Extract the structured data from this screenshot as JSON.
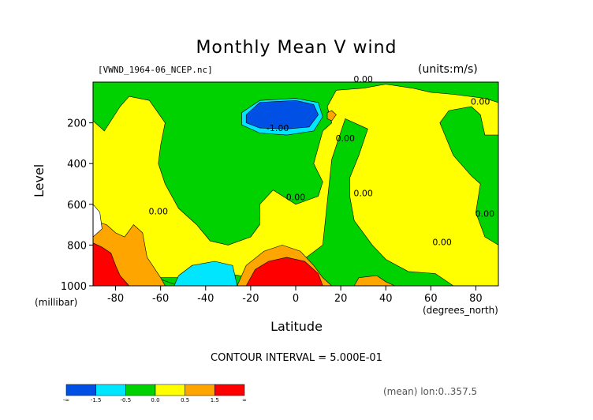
{
  "chart_data": {
    "type": "heatmap",
    "title": "Monthly Mean V wind",
    "file_label": "[VWND_1964-06_NCEP.nc]",
    "units_label": "(units:m/s)",
    "xlabel": "Latitude",
    "x_unit_label": "(degrees_north)",
    "ylabel": "Level",
    "y_unit_label": "(millibar)",
    "xlim": [
      -90,
      90
    ],
    "ylim": [
      1000,
      0
    ],
    "x_ticks": [
      "-80",
      "-60",
      "-40",
      "-20",
      "0",
      "20",
      "40",
      "60",
      "80"
    ],
    "x_tick_values": [
      -80,
      -60,
      -40,
      -20,
      0,
      20,
      40,
      60,
      80
    ],
    "y_ticks": [
      "200",
      "400",
      "600",
      "800",
      "1000"
    ],
    "y_tick_values": [
      200,
      400,
      600,
      800,
      1000
    ],
    "contour_labels": [
      {
        "text": "0.00",
        "x": 30,
        "y": 0
      },
      {
        "text": "0.00",
        "x": 82,
        "y": 110
      },
      {
        "text": "-1.00",
        "x": -8,
        "y": 240
      },
      {
        "text": "0.00",
        "x": 22,
        "y": 290
      },
      {
        "text": "0.00",
        "x": 0,
        "y": 580
      },
      {
        "text": "0.00",
        "x": 30,
        "y": 560
      },
      {
        "text": "0.00",
        "x": -61,
        "y": 650
      },
      {
        "text": "0.00",
        "x": 84,
        "y": 660
      },
      {
        "text": "0.00",
        "x": 65,
        "y": 800
      }
    ],
    "contour_interval": "CONTOUR INTERVAL = 5.000E-01",
    "colorbar": {
      "colors": [
        "#0050e6",
        "#00e6ff",
        "#00d200",
        "#ffff00",
        "#ffa500",
        "#ff0000"
      ],
      "labels": [
        "-∞",
        "-1.5",
        "-0.5",
        "0.0",
        "0.5",
        "1.5",
        "∞"
      ]
    },
    "regions": [
      {
        "level": "green",
        "color": "#00d200",
        "points": [
          [
            -90,
            0
          ],
          [
            90,
            0
          ],
          [
            90,
            1000
          ],
          [
            -90,
            1000
          ]
        ]
      },
      {
        "level": "yellow",
        "color": "#ffff00",
        "points": [
          [
            -90,
            190
          ],
          [
            -85,
            240
          ],
          [
            -78,
            120
          ],
          [
            -74,
            70
          ],
          [
            -65,
            90
          ],
          [
            -58,
            200
          ],
          [
            -60,
            310
          ],
          [
            -61,
            400
          ],
          [
            -58,
            500
          ],
          [
            -52,
            620
          ],
          [
            -44,
            700
          ],
          [
            -38,
            780
          ],
          [
            -30,
            800
          ],
          [
            -20,
            760
          ],
          [
            -16,
            700
          ],
          [
            -16,
            600
          ],
          [
            -10,
            530
          ],
          [
            0,
            600
          ],
          [
            10,
            560
          ],
          [
            12,
            490
          ],
          [
            8,
            400
          ],
          [
            12,
            240
          ],
          [
            16,
            200
          ],
          [
            14,
            120
          ],
          [
            18,
            40
          ],
          [
            30,
            30
          ],
          [
            40,
            10
          ],
          [
            52,
            30
          ],
          [
            60,
            50
          ],
          [
            70,
            60
          ],
          [
            84,
            80
          ],
          [
            90,
            100
          ],
          [
            90,
            260
          ],
          [
            84,
            260
          ],
          [
            82,
            160
          ],
          [
            78,
            120
          ],
          [
            68,
            140
          ],
          [
            64,
            200
          ],
          [
            70,
            360
          ],
          [
            78,
            460
          ],
          [
            82,
            500
          ],
          [
            80,
            640
          ],
          [
            84,
            760
          ],
          [
            90,
            800
          ],
          [
            90,
            1000
          ],
          [
            70,
            1000
          ],
          [
            62,
            940
          ],
          [
            50,
            930
          ],
          [
            40,
            870
          ],
          [
            34,
            800
          ],
          [
            26,
            680
          ],
          [
            24,
            560
          ],
          [
            24,
            470
          ],
          [
            28,
            360
          ],
          [
            32,
            230
          ],
          [
            22,
            180
          ],
          [
            16,
            380
          ],
          [
            12,
            800
          ],
          [
            0,
            900
          ],
          [
            -20,
            960
          ],
          [
            -30,
            940
          ],
          [
            -40,
            960
          ],
          [
            -62,
            960
          ],
          [
            -80,
            950
          ],
          [
            -90,
            1000
          ]
        ]
      },
      {
        "level": "green-pocket",
        "color": "#00d200",
        "points": [
          [
            -90,
            930
          ],
          [
            -76,
            940
          ],
          [
            -62,
            960
          ],
          [
            -52,
            1000
          ],
          [
            -90,
            1000
          ]
        ]
      },
      {
        "level": "orange-left",
        "color": "#ffa500",
        "points": [
          [
            -90,
            680
          ],
          [
            -84,
            700
          ],
          [
            -80,
            740
          ],
          [
            -76,
            760
          ],
          [
            -72,
            700
          ],
          [
            -68,
            740
          ],
          [
            -66,
            860
          ],
          [
            -60,
            960
          ],
          [
            -58,
            1000
          ],
          [
            -78,
            1000
          ],
          [
            -84,
            950
          ],
          [
            -90,
            860
          ]
        ]
      },
      {
        "level": "red-left",
        "color": "#ff0000",
        "points": [
          [
            -90,
            790
          ],
          [
            -86,
            810
          ],
          [
            -82,
            840
          ],
          [
            -80,
            900
          ],
          [
            -78,
            950
          ],
          [
            -74,
            1000
          ],
          [
            -90,
            1000
          ]
        ]
      },
      {
        "level": "cyan-left",
        "color": "#00e6ff",
        "points": [
          [
            -54,
            1000
          ],
          [
            -52,
            950
          ],
          [
            -46,
            900
          ],
          [
            -36,
            880
          ],
          [
            -28,
            900
          ],
          [
            -26,
            1000
          ]
        ]
      },
      {
        "level": "white-missing",
        "color": "#ffffff",
        "points": [
          [
            -90,
            600
          ],
          [
            -87,
            640
          ],
          [
            -86,
            720
          ],
          [
            -90,
            760
          ]
        ]
      },
      {
        "level": "orange-mid",
        "color": "#ffa500",
        "points": [
          [
            -26,
            1000
          ],
          [
            -22,
            900
          ],
          [
            -14,
            830
          ],
          [
            -6,
            800
          ],
          [
            2,
            830
          ],
          [
            8,
            900
          ],
          [
            12,
            960
          ],
          [
            16,
            1000
          ]
        ]
      },
      {
        "level": "red-mid",
        "color": "#ff0000",
        "points": [
          [
            -22,
            1000
          ],
          [
            -18,
            920
          ],
          [
            -12,
            880
          ],
          [
            -4,
            860
          ],
          [
            4,
            880
          ],
          [
            10,
            940
          ],
          [
            12,
            1000
          ]
        ]
      },
      {
        "level": "orange-small-1",
        "color": "#ffa500",
        "points": [
          [
            14,
            150
          ],
          [
            16,
            140
          ],
          [
            18,
            160
          ],
          [
            16,
            190
          ],
          [
            14,
            180
          ]
        ]
      },
      {
        "level": "orange-small-2",
        "color": "#ffa500",
        "points": [
          [
            26,
            1000
          ],
          [
            28,
            960
          ],
          [
            36,
            950
          ],
          [
            40,
            980
          ],
          [
            44,
            1000
          ]
        ]
      },
      {
        "level": "cyan-upper",
        "color": "#00e6ff",
        "points": [
          [
            -24,
            150
          ],
          [
            -16,
            90
          ],
          [
            0,
            80
          ],
          [
            10,
            100
          ],
          [
            12,
            170
          ],
          [
            8,
            240
          ],
          [
            -4,
            260
          ],
          [
            -16,
            250
          ],
          [
            -24,
            210
          ]
        ]
      },
      {
        "level": "blue-upper",
        "color": "#0050e6",
        "points": [
          [
            -22,
            160
          ],
          [
            -16,
            100
          ],
          [
            0,
            90
          ],
          [
            8,
            110
          ],
          [
            10,
            160
          ],
          [
            6,
            220
          ],
          [
            -4,
            230
          ],
          [
            -16,
            225
          ],
          [
            -22,
            200
          ]
        ]
      }
    ]
  }
}
